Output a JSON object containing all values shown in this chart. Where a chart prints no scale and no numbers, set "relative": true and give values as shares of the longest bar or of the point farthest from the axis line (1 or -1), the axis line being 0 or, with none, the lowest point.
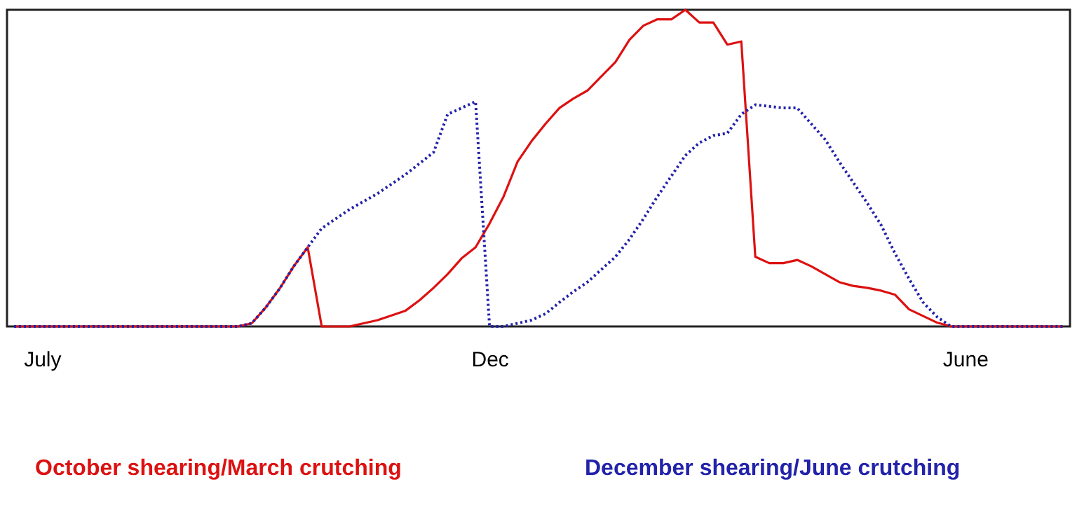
{
  "chart_data": {
    "type": "line",
    "relative": true,
    "grid": false,
    "legend": "bottom",
    "categories": [
      null,
      null,
      "July",
      null,
      null,
      null,
      null,
      null,
      null,
      null,
      null,
      null,
      null,
      null,
      null,
      null,
      null,
      null,
      null,
      null,
      null,
      null,
      null,
      null,
      null,
      null,
      null,
      null,
      null,
      null,
      null,
      null,
      null,
      null,
      "Dec",
      null,
      null,
      null,
      null,
      null,
      null,
      null,
      null,
      null,
      null,
      null,
      null,
      null,
      null,
      null,
      null,
      null,
      null,
      null,
      null,
      null,
      null,
      null,
      null,
      null,
      null,
      null,
      null,
      null,
      null,
      null,
      null,
      null,
      "June",
      null,
      null,
      null,
      null,
      null,
      null,
      null
    ],
    "series": [
      {
        "name": "October shearing/March crutching",
        "color": "#dd1111",
        "line_style": "solid",
        "values": [
          0,
          0,
          0,
          0,
          0,
          0,
          0,
          0,
          0,
          0,
          0,
          0,
          0,
          0,
          0,
          0,
          0,
          0.01,
          0.06,
          0.12,
          0.19,
          0.25,
          0,
          0,
          0,
          0.01,
          0.02,
          0.035,
          0.05,
          0.083,
          0.122,
          0.165,
          0.215,
          0.25,
          0.325,
          0.41,
          0.52,
          0.585,
          0.64,
          0.69,
          0.72,
          0.745,
          0.79,
          0.835,
          0.905,
          0.95,
          0.97,
          0.97,
          1,
          0.96,
          0.96,
          0.89,
          0.9,
          0.22,
          0.2,
          0.2,
          0.21,
          0.19,
          0.165,
          0.14,
          0.128,
          0.122,
          0.113,
          0.1,
          0.054,
          0.033,
          0.012,
          0,
          0,
          0,
          0,
          0,
          0,
          0,
          0,
          0
        ]
      },
      {
        "name": "December shearing/June crutching",
        "color": "#2222aa",
        "line_style": "dotted",
        "values": [
          0,
          0,
          0,
          0,
          0,
          0,
          0,
          0,
          0,
          0,
          0,
          0,
          0,
          0,
          0,
          0,
          0,
          0.01,
          0.06,
          0.12,
          0.19,
          0.25,
          0.31,
          0.34,
          0.37,
          0.395,
          0.42,
          0.45,
          0.48,
          0.515,
          0.55,
          0.67,
          0.69,
          0.71,
          0,
          0,
          0.01,
          0.02,
          0.04,
          0.076,
          0.11,
          0.14,
          0.18,
          0.22,
          0.275,
          0.34,
          0.41,
          0.475,
          0.54,
          0.58,
          0.603,
          0.61,
          0.67,
          0.7,
          0.695,
          0.69,
          0.69,
          0.64,
          0.59,
          0.52,
          0.455,
          0.39,
          0.32,
          0.23,
          0.15,
          0.076,
          0.03,
          0,
          0,
          0,
          0,
          0,
          0,
          0,
          0,
          0
        ]
      }
    ]
  }
}
